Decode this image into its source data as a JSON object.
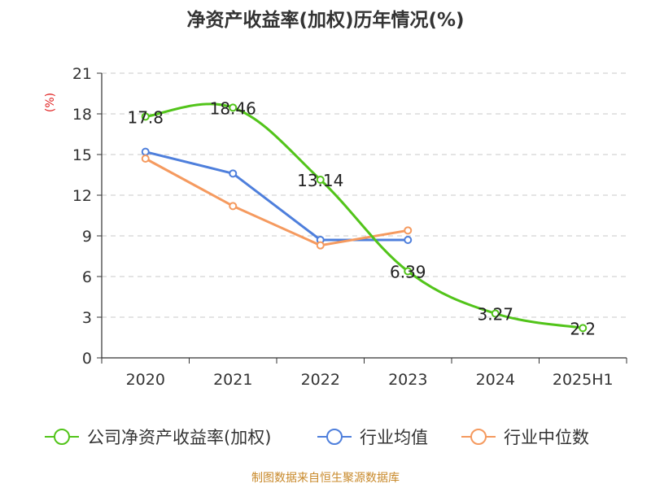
{
  "chart_data": {
    "type": "line",
    "title": "净资产收益率(加权)历年情况(%)",
    "ylabel": "(%)",
    "xlabel": "",
    "categories": [
      "2020",
      "2021",
      "2022",
      "2023",
      "2024",
      "2025H1"
    ],
    "ylim": [
      0,
      21
    ],
    "yticks": [
      "0",
      "3",
      "6",
      "9",
      "12",
      "15",
      "18",
      "21"
    ],
    "grid": true,
    "legend_position": "bottom",
    "series": [
      {
        "name": "公司净资产收益率(加权)",
        "color": "#52c41a",
        "values": [
          17.8,
          18.46,
          13.14,
          6.39,
          3.27,
          2.2
        ],
        "labels": [
          "17.8",
          "18.46",
          "13.14",
          "6.39",
          "3.27",
          "2.2"
        ]
      },
      {
        "name": "行业均值",
        "color": "#4e7fdc",
        "values": [
          15.2,
          13.6,
          8.7,
          8.7,
          null,
          null
        ]
      },
      {
        "name": "行业中位数",
        "color": "#f59a5f",
        "values": [
          14.7,
          11.2,
          8.3,
          9.4,
          null,
          null
        ]
      }
    ],
    "source": "制图数据来自恒生聚源数据库"
  }
}
